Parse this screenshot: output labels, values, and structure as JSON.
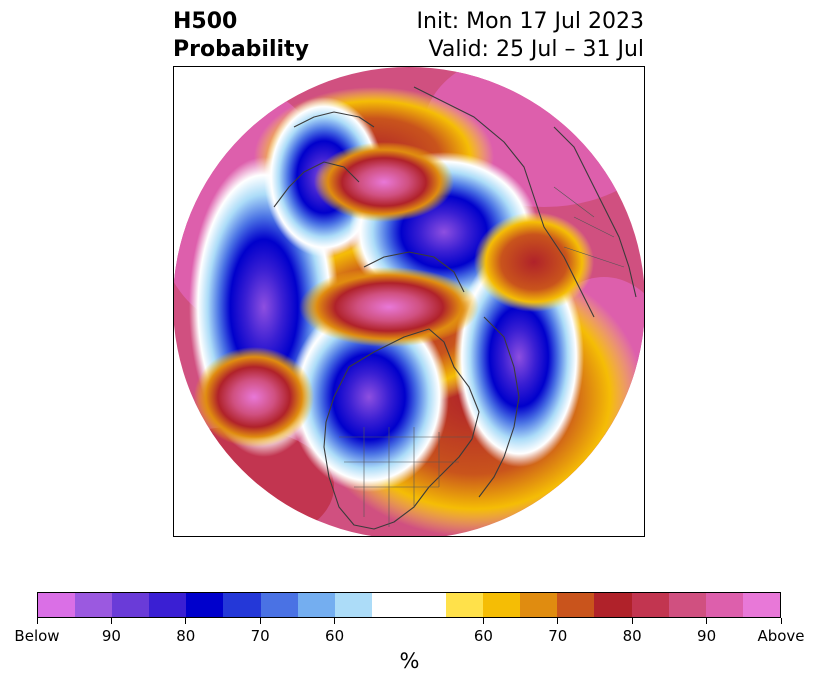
{
  "title": {
    "left_line1": "H500",
    "left_line2": "Probability",
    "right_line1": "Init: Mon 17 Jul 2023",
    "right_line2": "Valid: 25 Jul – 31 Jul"
  },
  "map": {
    "projection": "north polar stereographic",
    "field": "500 hPa height anomaly probability",
    "features": {
      "below_centers": [
        "western North America / eastern Pacific",
        "central North America (Great Lakes)",
        "north Atlantic",
        "Arctic north of Europe"
      ],
      "above_centers": [
        "Arctic Ocean / Pole",
        "Aleutians / North Pacific",
        "Europe",
        "Greenland region"
      ]
    }
  },
  "colorbar": {
    "colors": [
      "#da6fe6",
      "#9b59e0",
      "#6a3bd8",
      "#3a1fd3",
      "#0000cc",
      "#2438d8",
      "#4a72e4",
      "#74aef0",
      "#acdcf8",
      "#ffffff",
      "#ffe14a",
      "#f5bd05",
      "#e08c10",
      "#c9541c",
      "#b0222a",
      "#c23550",
      "#d05080",
      "#dd5fac",
      "#e878d8"
    ],
    "tick_labels": [
      "Below",
      "90",
      "80",
      "70",
      "60",
      "60",
      "70",
      "80",
      "90",
      "Above"
    ],
    "units": "%"
  }
}
